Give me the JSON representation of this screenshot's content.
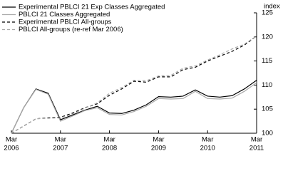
{
  "chart_data": {
    "type": "line",
    "y_axis_label": "index",
    "categories": [
      [
        "Mar",
        "2006"
      ],
      null,
      null,
      null,
      [
        "Mar",
        "2007"
      ],
      null,
      null,
      null,
      [
        "Mar",
        "2008"
      ],
      null,
      null,
      null,
      [
        "Mar",
        "2009"
      ],
      null,
      null,
      null,
      [
        "Mar",
        "2010"
      ],
      null,
      null,
      null,
      [
        "Mar",
        "2011"
      ]
    ],
    "ylim": [
      100,
      125
    ],
    "yticks": [
      100,
      105,
      110,
      115,
      120,
      125
    ],
    "series": [
      {
        "name": "Experimental PBLCI 21 Exp Classes Aggregated",
        "color": "#000000",
        "dashed": false,
        "values": [
          100,
          105.3,
          109.2,
          108.3,
          102.8,
          103.8,
          104.8,
          105.6,
          104.2,
          104.1,
          104.8,
          105.9,
          107.6,
          107.5,
          107.7,
          109,
          107.7,
          107.5,
          107.8,
          109.2,
          111
        ]
      },
      {
        "name": "PBLCI 21 Classes Aggregated",
        "color": "#aaaaaa",
        "dashed": false,
        "values": [
          100,
          105.3,
          109.1,
          108.1,
          102.5,
          103.6,
          104.7,
          105.3,
          103.9,
          103.8,
          104.5,
          105.6,
          107.2,
          107.1,
          107.2,
          108.7,
          107.2,
          107.1,
          107.3,
          108.7,
          110.5
        ]
      },
      {
        "name": "Experimental PBLCI All-groups",
        "color": "#000000",
        "dashed": true,
        "values": [
          100,
          101.5,
          103,
          103.2,
          103.3,
          104.2,
          105.3,
          106.1,
          107.9,
          109.2,
          110.8,
          110.6,
          111.7,
          111.7,
          113.2,
          113.7,
          115,
          116,
          117,
          118.3,
          120.2
        ]
      },
      {
        "name": "PBLCI All-groups (re-ref Mar 2006)",
        "color": "#aaaaaa",
        "dashed": true,
        "values": [
          100,
          101.5,
          103,
          103.1,
          103.2,
          104,
          105.2,
          106.3,
          108.3,
          109.5,
          111,
          110.9,
          111.9,
          112,
          113.5,
          114,
          115.2,
          116.3,
          117.5,
          118.5,
          120.2
        ]
      }
    ]
  }
}
